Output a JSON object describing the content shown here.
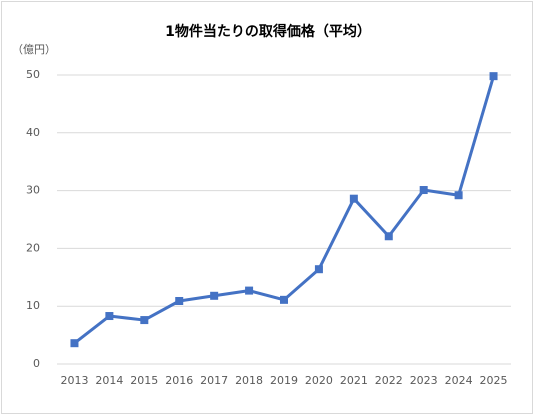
{
  "chart_data": {
    "type": "line",
    "title": "1物件当たりの取得価格（平均）",
    "y_axis_label": "（億円）",
    "categories": [
      "2013",
      "2014",
      "2015",
      "2016",
      "2017",
      "2018",
      "2019",
      "2020",
      "2021",
      "2022",
      "2023",
      "2024",
      "2025"
    ],
    "values": [
      3.6,
      8.3,
      7.6,
      10.9,
      11.8,
      12.7,
      11.1,
      16.4,
      28.6,
      22.1,
      30.1,
      29.2,
      49.8
    ],
    "color": "#4472c4",
    "ylim": [
      0,
      50
    ],
    "yticks": [
      0,
      10,
      20,
      30,
      40,
      50
    ],
    "grid": true
  }
}
